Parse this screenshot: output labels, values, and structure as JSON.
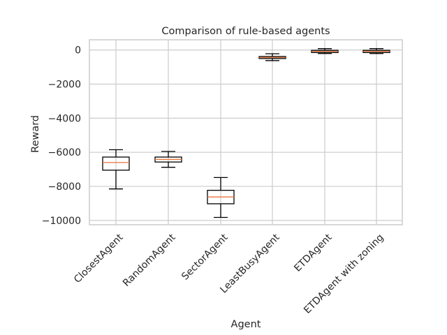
{
  "chart_data": {
    "type": "box",
    "title": "Comparison of rule-based agents",
    "xlabel": "Agent",
    "ylabel": "Reward",
    "categories": [
      "ClosestAgent",
      "RandomAgent",
      "SectorAgent",
      "LeastBusyAgent",
      "ETDAgent",
      "ETDAgent with zoning"
    ],
    "boxes": [
      {
        "whisker_low": -8150,
        "q1": -7050,
        "median": -6600,
        "q3": -6280,
        "whisker_high": -5850
      },
      {
        "whisker_low": -6880,
        "q1": -6570,
        "median": -6420,
        "q3": -6280,
        "whisker_high": -5950
      },
      {
        "whisker_low": -9820,
        "q1": -9020,
        "median": -8620,
        "q3": -8230,
        "whisker_high": -7480
      },
      {
        "whisker_low": -620,
        "q1": -500,
        "median": -440,
        "q3": -380,
        "whisker_high": -220
      },
      {
        "whisker_low": -210,
        "q1": -150,
        "median": -80,
        "q3": -20,
        "whisker_high": 80
      },
      {
        "whisker_low": -210,
        "q1": -150,
        "median": -80,
        "q3": -20,
        "whisker_high": 80
      }
    ],
    "yticks": [
      0,
      -2000,
      -4000,
      -6000,
      -8000,
      -10000
    ],
    "ytick_labels": [
      "0",
      "−2000",
      "−4000",
      "−6000",
      "−8000",
      "−10000"
    ],
    "ylim": [
      -10250,
      600
    ],
    "grid": true,
    "colors": {
      "box": "#000000",
      "median": "#e8743b",
      "grid": "#cccccc",
      "spine": "#cccccc"
    }
  }
}
